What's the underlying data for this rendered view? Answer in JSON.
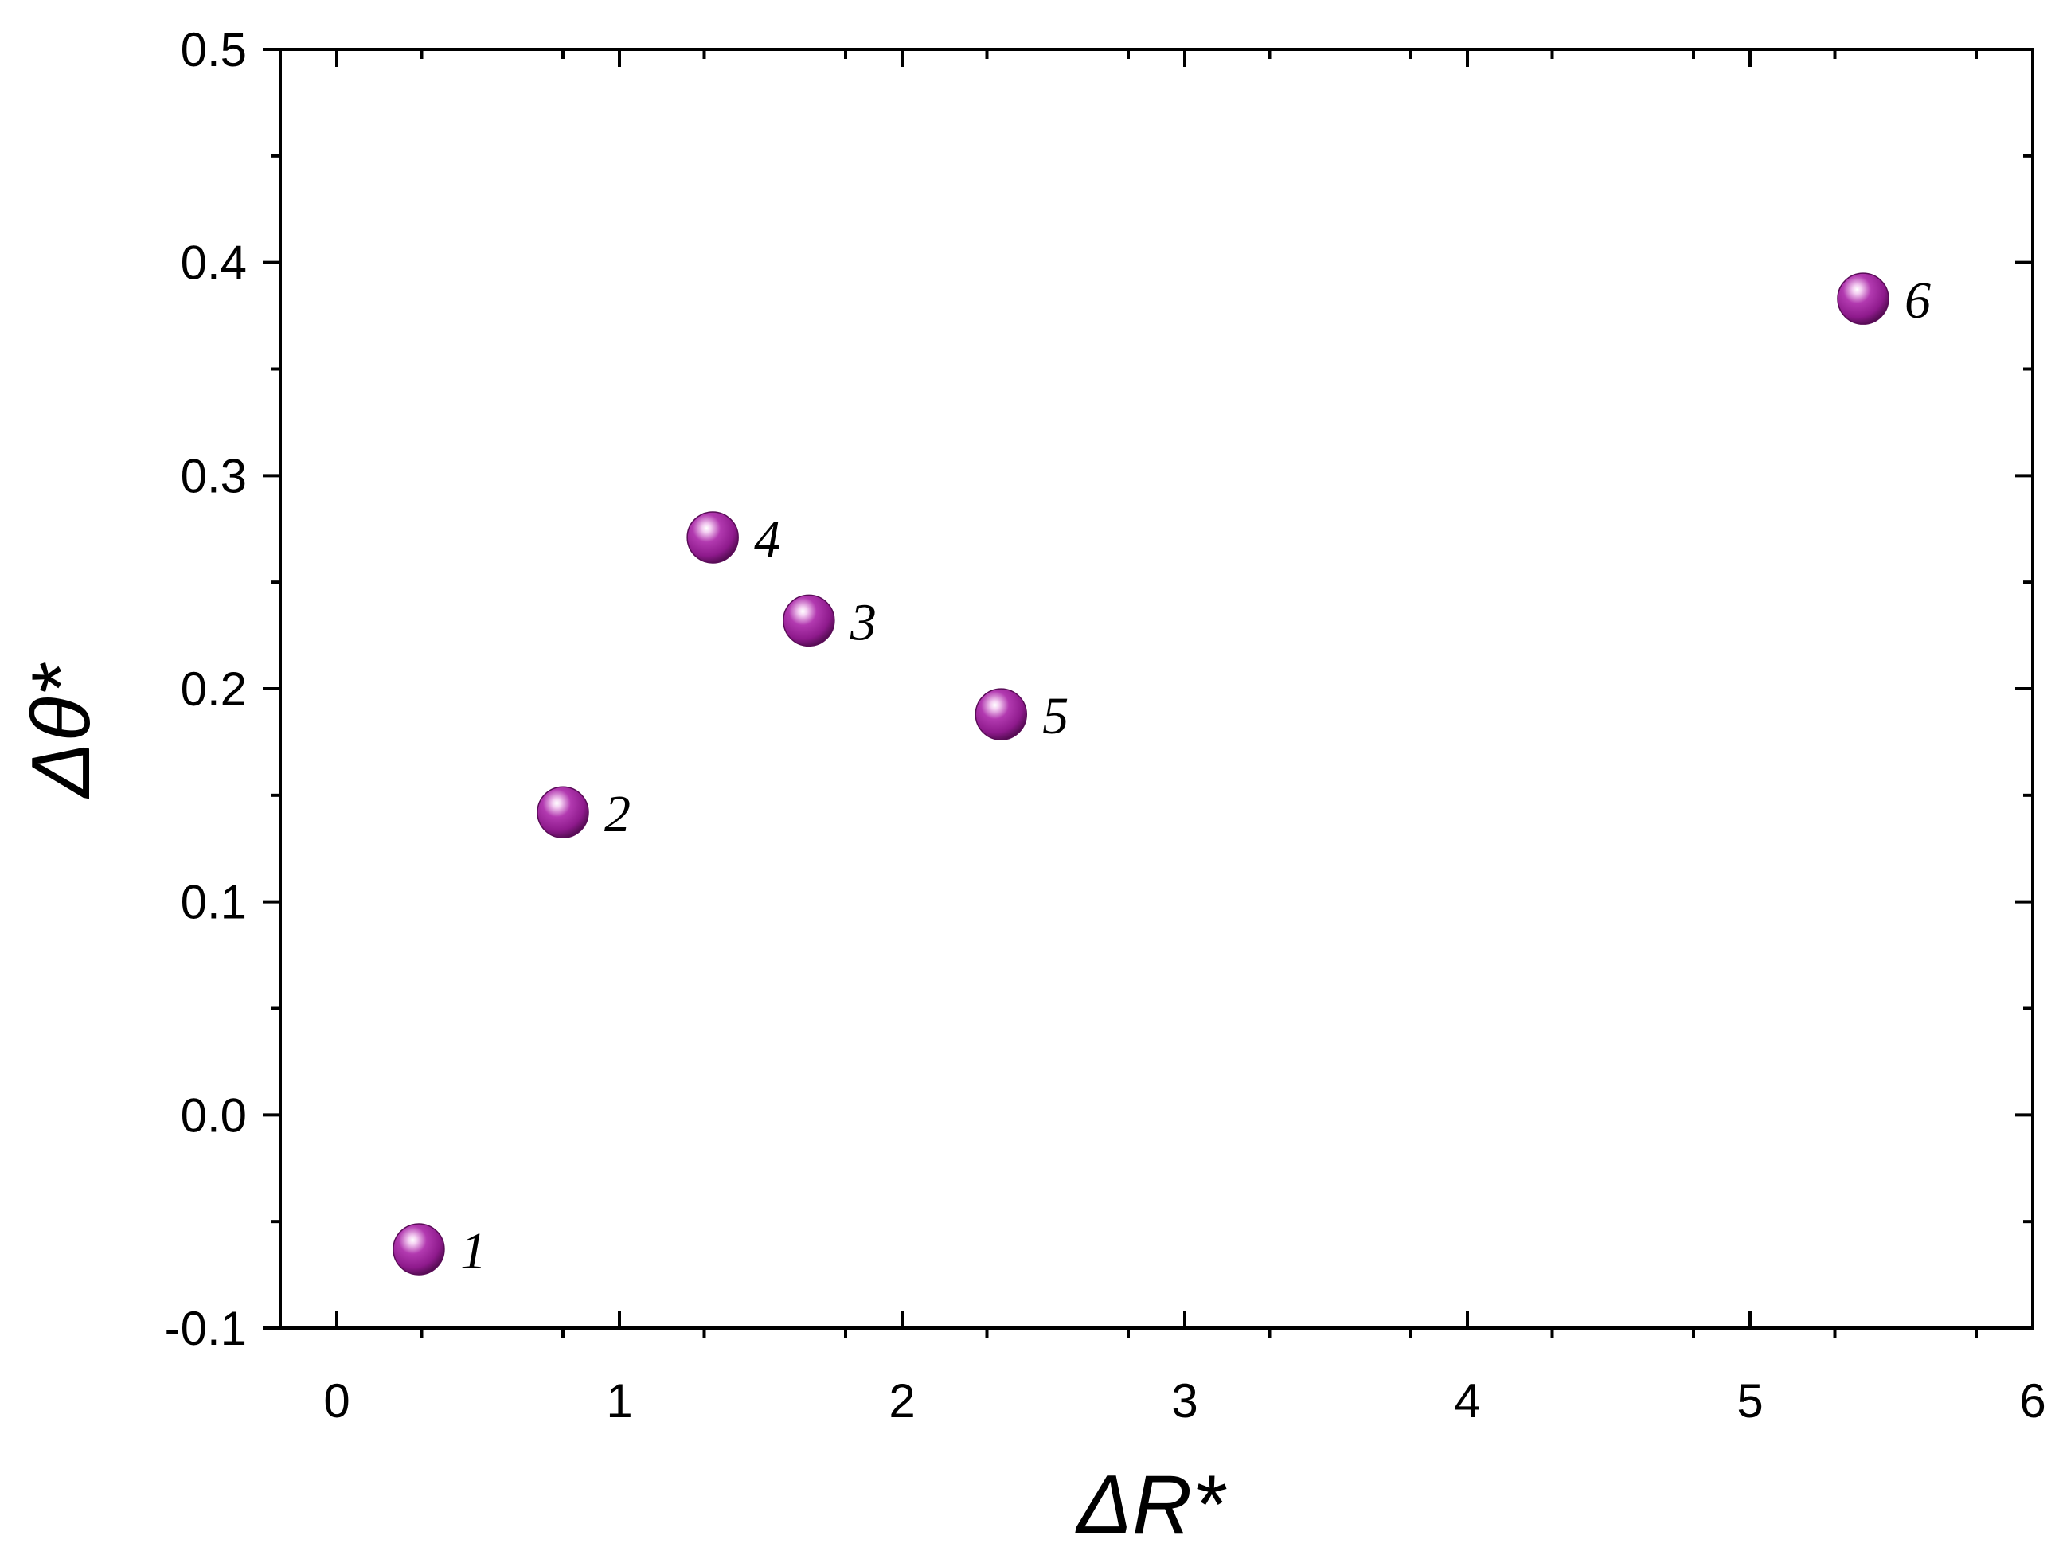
{
  "chart_data": {
    "type": "scatter",
    "title": "",
    "xlabel": "ΔR*",
    "ylabel": "Δθ*",
    "xlim": [
      -0.2,
      6
    ],
    "ylim": [
      -0.1,
      0.5
    ],
    "x_ticks": [
      "0",
      "1",
      "2",
      "3",
      "4",
      "5",
      "6"
    ],
    "x_tick_values": [
      0,
      1,
      2,
      3,
      4,
      5,
      6
    ],
    "y_ticks": [
      "-0.1",
      "0.0",
      "0.1",
      "0.2",
      "0.3",
      "0.4",
      "0.5"
    ],
    "y_tick_values": [
      -0.1,
      0.0,
      0.1,
      0.2,
      0.3,
      0.4,
      0.5
    ],
    "grid": false,
    "marker_color": "#8e1a8c",
    "points": [
      {
        "label": "1",
        "x": 0.29,
        "y": -0.063
      },
      {
        "label": "2",
        "x": 0.8,
        "y": 0.142
      },
      {
        "label": "3",
        "x": 1.67,
        "y": 0.232
      },
      {
        "label": "4",
        "x": 1.33,
        "y": 0.271
      },
      {
        "label": "5",
        "x": 2.35,
        "y": 0.188
      },
      {
        "label": "6",
        "x": 5.4,
        "y": 0.383
      }
    ]
  }
}
